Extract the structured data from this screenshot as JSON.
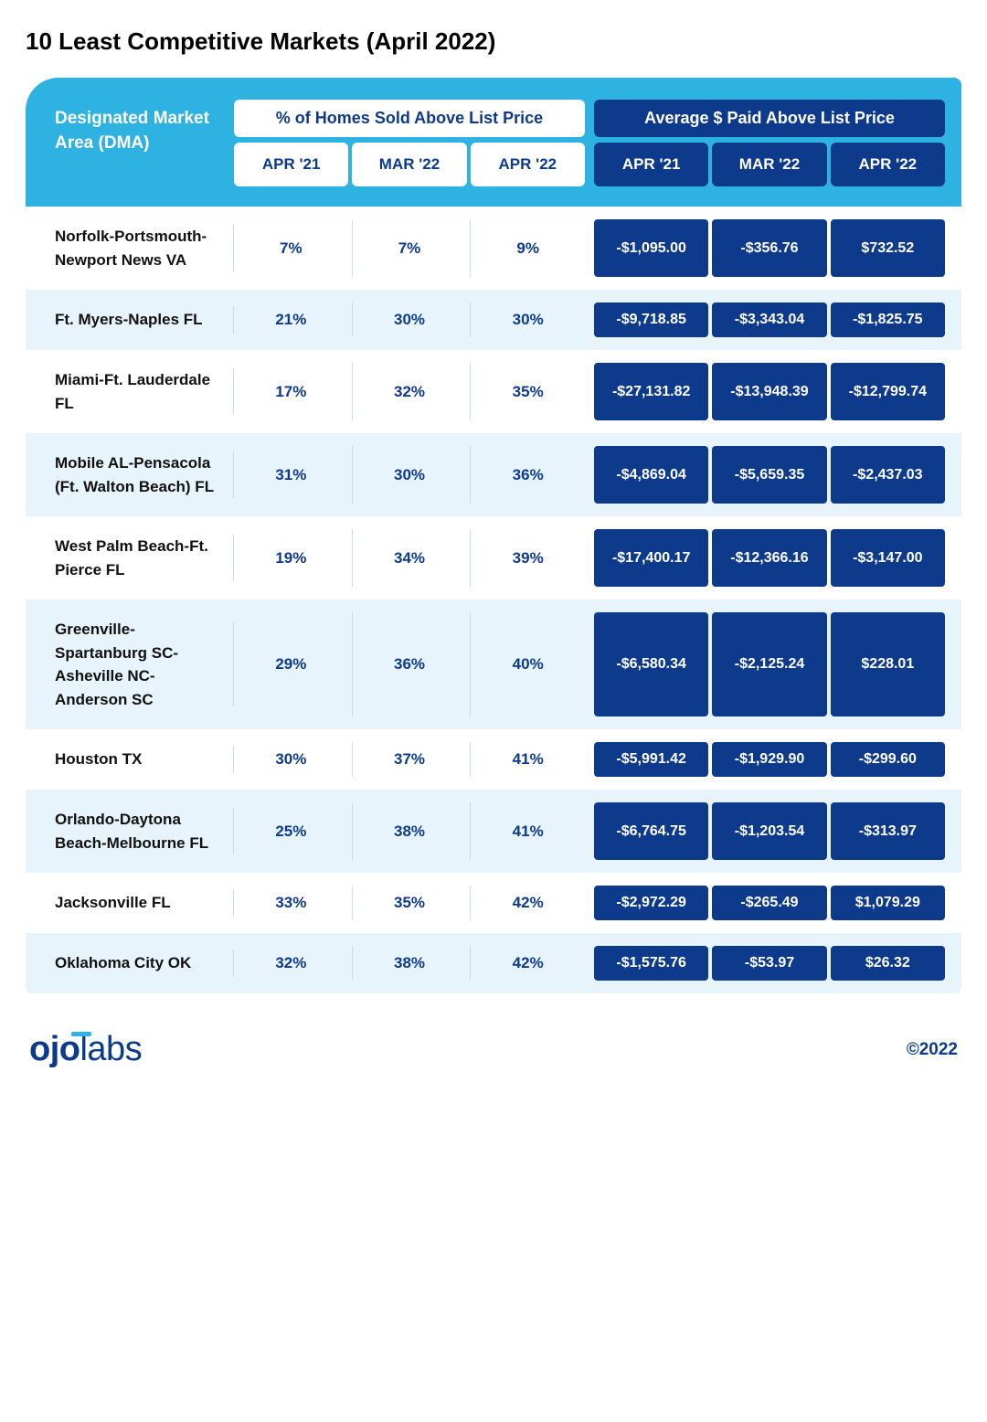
{
  "title": "10 Least Competitive Markets (April 2022)",
  "colors": {
    "header_bg": "#2db2e1",
    "dark_blue": "#0d3a8a",
    "white": "#ffffff",
    "row_alt": "#e8f4fb",
    "text_black": "#111111",
    "divider": "#cfd9e6"
  },
  "header": {
    "dma_label": "Designated Market Area (DMA)",
    "group1_title": "% of Homes Sold Above List Price",
    "group2_title": "Average $ Paid Above List Price",
    "sub_labels": [
      "APR '21",
      "MAR '22",
      "APR '22"
    ]
  },
  "rows": [
    {
      "dma": "Norfolk-Portsmouth-Newport News VA",
      "pct": [
        "7%",
        "7%",
        "9%"
      ],
      "amt": [
        "-$1,095.00",
        "-$356.76",
        "$732.52"
      ]
    },
    {
      "dma": "Ft. Myers-Naples FL",
      "pct": [
        "21%",
        "30%",
        "30%"
      ],
      "amt": [
        "-$9,718.85",
        "-$3,343.04",
        "-$1,825.75"
      ]
    },
    {
      "dma": "Miami-Ft. Lauderdale FL",
      "pct": [
        "17%",
        "32%",
        "35%"
      ],
      "amt": [
        "-$27,131.82",
        "-$13,948.39",
        "-$12,799.74"
      ]
    },
    {
      "dma": "Mobile AL-Pensacola (Ft. Walton Beach) FL",
      "pct": [
        "31%",
        "30%",
        "36%"
      ],
      "amt": [
        "-$4,869.04",
        "-$5,659.35",
        "-$2,437.03"
      ]
    },
    {
      "dma": "West Palm Beach-Ft. Pierce FL",
      "pct": [
        "19%",
        "34%",
        "39%"
      ],
      "amt": [
        "-$17,400.17",
        "-$12,366.16",
        "-$3,147.00"
      ]
    },
    {
      "dma": "Greenville-Spartanburg SC-Asheville NC-Anderson SC",
      "pct": [
        "29%",
        "36%",
        "40%"
      ],
      "amt": [
        "-$6,580.34",
        "-$2,125.24",
        "$228.01"
      ]
    },
    {
      "dma": "Houston TX",
      "pct": [
        "30%",
        "37%",
        "41%"
      ],
      "amt": [
        "-$5,991.42",
        "-$1,929.90",
        "-$299.60"
      ]
    },
    {
      "dma": "Orlando-Daytona Beach-Melbourne FL",
      "pct": [
        "25%",
        "38%",
        "41%"
      ],
      "amt": [
        "-$6,764.75",
        "-$1,203.54",
        "-$313.97"
      ]
    },
    {
      "dma": "Jacksonville FL",
      "pct": [
        "33%",
        "35%",
        "42%"
      ],
      "amt": [
        "-$2,972.29",
        "-$265.49",
        "$1,079.29"
      ]
    },
    {
      "dma": "Oklahoma City OK",
      "pct": [
        "32%",
        "38%",
        "42%"
      ],
      "amt": [
        "-$1,575.76",
        "-$53.97",
        "$26.32"
      ]
    }
  ],
  "footer": {
    "logo_part1": "ojo",
    "logo_part2": "labs",
    "copyright": "©2022"
  }
}
